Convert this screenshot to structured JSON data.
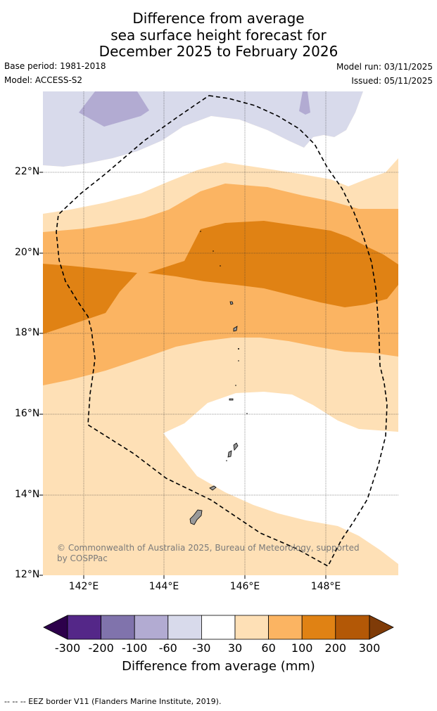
{
  "title": {
    "line1": "Difference from average",
    "line2": "sea surface height forecast for",
    "line3": "December 2025 to February 2026"
  },
  "meta": {
    "base_period": "Base period: 1981-2018",
    "model": "Model: ACCESS-S2",
    "model_run": "Model run: 03/11/2025",
    "issued": "Issued: 05/11/2025"
  },
  "map": {
    "lat_labels": [
      "22°N",
      "20°N",
      "18°N",
      "16°N",
      "14°N",
      "12°N"
    ],
    "lon_labels": [
      "142°E",
      "144°E",
      "146°E",
      "148°E"
    ],
    "copyright_line1": "© Commonwealth of Australia 2025, Bureau of Meteorology, supported",
    "copyright_line2": "by COSPPac"
  },
  "colorbar": {
    "tick_labels": [
      "-300",
      "-200",
      "-100",
      "-60",
      "-30",
      "30",
      "60",
      "100",
      "200",
      "300"
    ],
    "title": "Difference from average (mm)",
    "colors": {
      "below_-300": "#2d004b",
      "-300_-200": "#542788",
      "-200_-100": "#8073ac",
      "-100_-60": "#b2abd2",
      "-60_-30": "#d8daeb",
      "-30_30": "#ffffff",
      "30_60": "#fee0b6",
      "60_100": "#fbb462",
      "100_200": "#e08214",
      "200_300": "#b35806",
      "above_300": "#7f3b08"
    }
  },
  "footer": {
    "legend": "--  --  -- EEZ border V11 (Flanders Marine Institute, 2019)."
  }
}
